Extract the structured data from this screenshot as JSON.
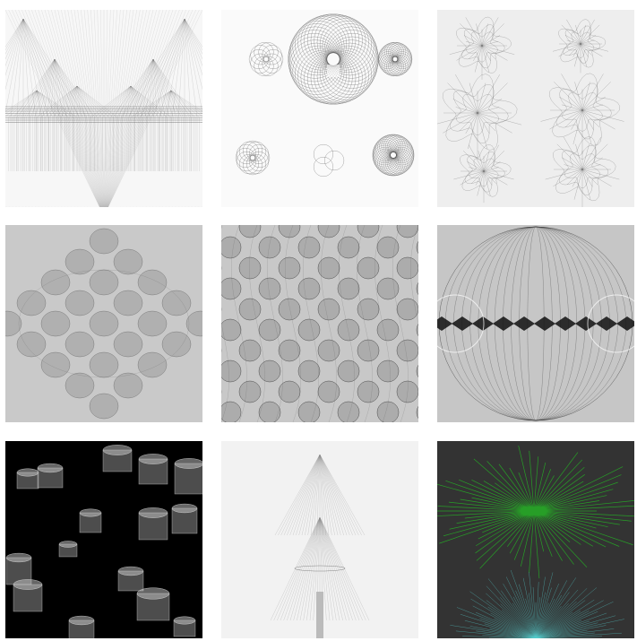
{
  "tiles": [
    {
      "art": "mountain-cones",
      "background": "#f7f7f7",
      "stroke": "#555555"
    },
    {
      "art": "spirograph-rosettes",
      "background": "#fafafa",
      "stroke": "#444444"
    },
    {
      "art": "flower-knots",
      "background": "#eeeeee",
      "stroke": "#444444"
    },
    {
      "art": "ellipsoid-diamond",
      "background": "#c9c9c9",
      "stroke": "#4a4a4a"
    },
    {
      "art": "sphere-lattice",
      "background": "#c8c8c8",
      "stroke": "#333333"
    },
    {
      "art": "globe-lens",
      "background": "#c6c6c6",
      "stroke": "#333333"
    },
    {
      "art": "cylinders",
      "background": "#000000",
      "stroke": "#dddddd"
    },
    {
      "art": "tree",
      "background": "#f2f2f2",
      "stroke": "#888888"
    },
    {
      "art": "green-burst",
      "background": "#333333",
      "stroke": "#22cc22",
      "accent": "#55cccc"
    }
  ]
}
